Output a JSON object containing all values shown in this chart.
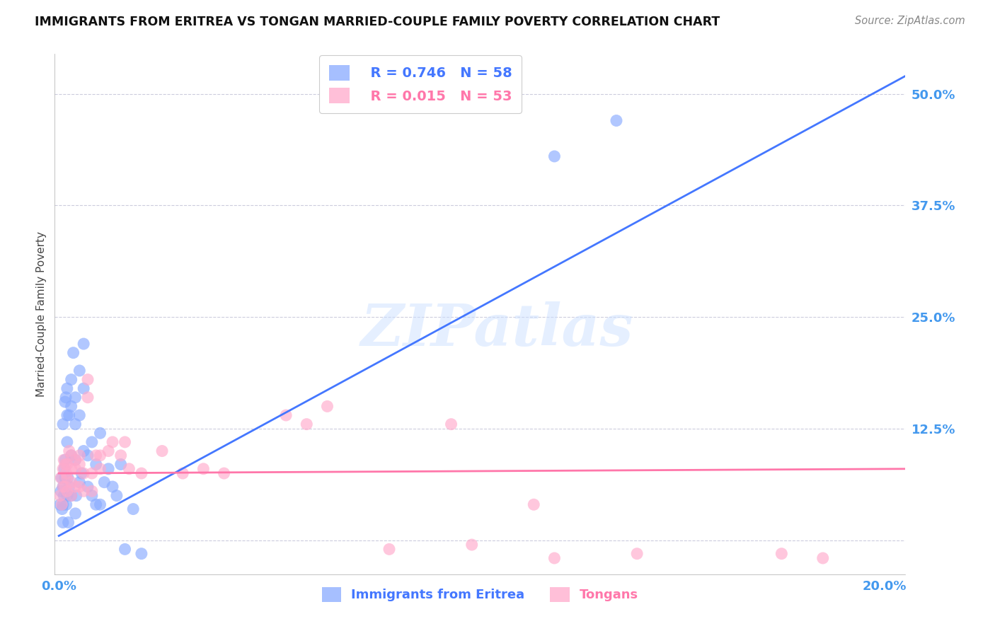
{
  "title": "IMMIGRANTS FROM ERITREA VS TONGAN MARRIED-COUPLE FAMILY POVERTY CORRELATION CHART",
  "source": "Source: ZipAtlas.com",
  "ylabel": "Married-Couple Family Poverty",
  "yticks": [
    0.0,
    0.125,
    0.25,
    0.375,
    0.5
  ],
  "ytick_labels": [
    "",
    "12.5%",
    "25.0%",
    "37.5%",
    "50.0%"
  ],
  "xlim": [
    -0.001,
    0.205
  ],
  "ylim": [
    -0.038,
    0.545
  ],
  "watermark": "ZIPatlas",
  "legend_eritrea_R": "R = 0.746",
  "legend_eritrea_N": "N = 58",
  "legend_tongan_R": "R = 0.015",
  "legend_tongan_N": "N = 53",
  "eritrea_color": "#88aaff",
  "tongan_color": "#ffaacc",
  "eritrea_line_color": "#4477ff",
  "tongan_line_color": "#ff77aa",
  "eritrea_line_x0": 0.0,
  "eritrea_line_y0": 0.005,
  "eritrea_line_x1": 0.205,
  "eritrea_line_y1": 0.52,
  "tongan_line_x0": 0.0,
  "tongan_line_y0": 0.075,
  "tongan_line_x1": 0.205,
  "tongan_line_y1": 0.08,
  "eritrea_x": [
    0.0003,
    0.0005,
    0.0007,
    0.0008,
    0.001,
    0.001,
    0.001,
    0.001,
    0.0012,
    0.0013,
    0.0015,
    0.0015,
    0.0015,
    0.0017,
    0.0018,
    0.002,
    0.002,
    0.002,
    0.002,
    0.0022,
    0.0023,
    0.0025,
    0.0025,
    0.003,
    0.003,
    0.003,
    0.003,
    0.0035,
    0.004,
    0.004,
    0.004,
    0.004,
    0.0042,
    0.005,
    0.005,
    0.005,
    0.0055,
    0.006,
    0.006,
    0.006,
    0.007,
    0.007,
    0.008,
    0.008,
    0.009,
    0.009,
    0.01,
    0.01,
    0.011,
    0.012,
    0.013,
    0.014,
    0.015,
    0.016,
    0.018,
    0.02,
    0.12,
    0.135
  ],
  "eritrea_y": [
    0.04,
    0.055,
    0.07,
    0.035,
    0.13,
    0.06,
    0.04,
    0.02,
    0.05,
    0.08,
    0.155,
    0.09,
    0.07,
    0.16,
    0.04,
    0.17,
    0.14,
    0.11,
    0.05,
    0.07,
    0.02,
    0.14,
    0.06,
    0.18,
    0.15,
    0.095,
    0.05,
    0.21,
    0.16,
    0.13,
    0.09,
    0.03,
    0.05,
    0.19,
    0.14,
    0.065,
    0.075,
    0.22,
    0.17,
    0.1,
    0.095,
    0.06,
    0.11,
    0.05,
    0.085,
    0.04,
    0.12,
    0.04,
    0.065,
    0.08,
    0.06,
    0.05,
    0.085,
    -0.01,
    0.035,
    -0.015,
    0.43,
    0.47
  ],
  "tongan_x": [
    0.0003,
    0.0005,
    0.0007,
    0.001,
    0.001,
    0.0012,
    0.0015,
    0.0015,
    0.0018,
    0.002,
    0.002,
    0.002,
    0.0025,
    0.003,
    0.003,
    0.003,
    0.003,
    0.004,
    0.004,
    0.004,
    0.005,
    0.005,
    0.005,
    0.006,
    0.006,
    0.007,
    0.007,
    0.008,
    0.008,
    0.009,
    0.01,
    0.01,
    0.012,
    0.013,
    0.015,
    0.016,
    0.017,
    0.02,
    0.025,
    0.03,
    0.035,
    0.04,
    0.055,
    0.06,
    0.065,
    0.08,
    0.095,
    0.1,
    0.115,
    0.12,
    0.14,
    0.175,
    0.185
  ],
  "tongan_y": [
    0.05,
    0.07,
    0.04,
    0.08,
    0.06,
    0.09,
    0.085,
    0.06,
    0.075,
    0.055,
    0.085,
    0.07,
    0.1,
    0.08,
    0.095,
    0.065,
    0.05,
    0.09,
    0.08,
    0.06,
    0.095,
    0.085,
    0.06,
    0.075,
    0.055,
    0.16,
    0.18,
    0.075,
    0.055,
    0.095,
    0.08,
    0.095,
    0.1,
    0.11,
    0.095,
    0.11,
    0.08,
    0.075,
    0.1,
    0.075,
    0.08,
    0.075,
    0.14,
    0.13,
    0.15,
    -0.01,
    0.13,
    -0.005,
    0.04,
    -0.02,
    -0.015,
    -0.015,
    -0.02
  ]
}
